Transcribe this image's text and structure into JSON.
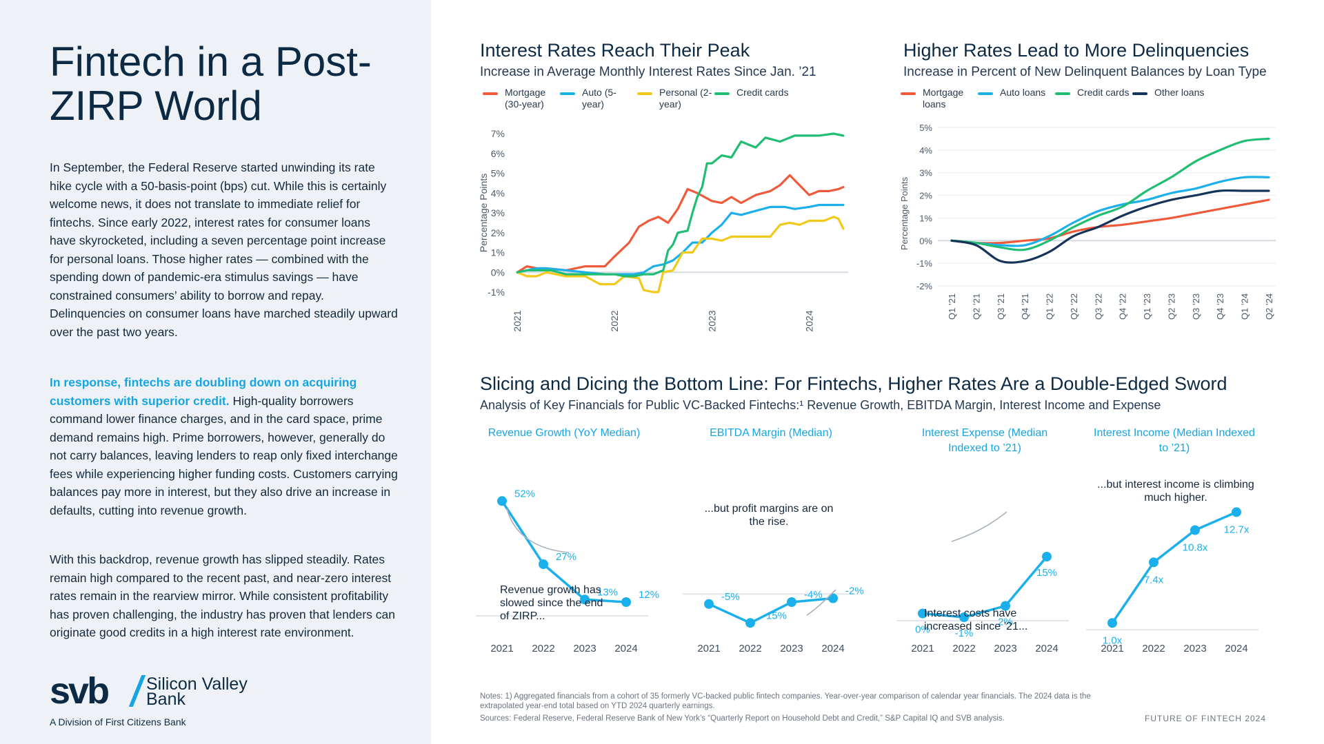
{
  "sidebar": {
    "title": "Fintech in a Post-ZIRP World",
    "paragraph1": "In September, the Federal Reserve started unwinding its rate hike cycle with a 50-basis-point (bps) cut. While this is certainly welcome news, it does not translate to immediate relief for fintechs. Since early 2022, interest rates for consumer loans have skyrocketed, including a seven percentage point increase for personal loans. Those higher rates — combined with the spending down of pandemic-era stimulus savings — have constrained consumers’ ability to borrow and repay. Delinquencies on consumer loans have marched steadily upward over the past two years.",
    "paragraph2_highlight": "In response, fintechs are doubling down on acquiring customers with superior credit.",
    "paragraph2_rest": " High-quality borrowers command lower finance charges, and in the card space, prime demand remains high. Prime borrowers, however, generally do not carry balances, leaving lenders to reap only fixed interchange fees while experiencing higher funding costs. Customers carrying balances pay more in interest, but they also drive an increase in defaults, cutting into revenue growth.",
    "paragraph3": "With this backdrop, revenue growth has slipped steadily. Rates remain high compared to the recent past, and near-zero interest rates remain in the rearview mirror. While consistent profitability has proven challenging, the industry has proven that lenders can originate good credits in a high interest rate environment.",
    "logo": {
      "mark": "svb",
      "name": "Silicon Valley Bank",
      "sub": "A Division of First Citizens Bank"
    }
  },
  "footer": {
    "notes": "Notes: 1) Aggregated financials from a cohort of 35 formerly VC-backed public fintech companies. Year-over-year comparison of calendar year financials. The 2024 data is the extrapolated year-end total based on YTD 2024 quarterly earnings.",
    "sources": "Sources: Federal Reserve, Federal Reserve Bank of New York’s “Quarterly Report on Household Debt and Credit,” S&P Capital IQ and SVB analysis.",
    "brand": "FUTURE OF FINTECH 2024"
  },
  "bottom_section": {
    "title": "Slicing and Dicing the Bottom Line: For Fintechs, Higher Rates Are a Double-Edged Sword",
    "subtitle": "Analysis of Key Financials for Public VC-Backed Fintechs:¹ Revenue Growth, EBITDA Margin, Interest Income and Expense"
  },
  "chart_data": [
    {
      "id": "interest",
      "type": "line",
      "title": "Interest Rates Reach Their Peak",
      "subtitle": "Increase in Average Monthly Interest Rates Since Jan. ’21",
      "ylabel": "Percentage Points",
      "ylim": [
        -1,
        7
      ],
      "yticks": [
        "-1%",
        "0%",
        "1%",
        "2%",
        "3%",
        "4%",
        "5%",
        "6%",
        "7%"
      ],
      "xlim": [
        2021,
        2024.4
      ],
      "xticks": [
        "2021",
        "2022",
        "2023",
        "2024"
      ],
      "grid": false,
      "legend_position": "top",
      "series": [
        {
          "name": "Mortgage (30-year)",
          "color": "#ef5a3a",
          "points": [
            [
              2021.0,
              0.0
            ],
            [
              2021.1,
              0.3
            ],
            [
              2021.2,
              0.2
            ],
            [
              2021.3,
              0.2
            ],
            [
              2021.5,
              0.1
            ],
            [
              2021.7,
              0.3
            ],
            [
              2021.9,
              0.3
            ],
            [
              2022.0,
              0.8
            ],
            [
              2022.15,
              1.5
            ],
            [
              2022.25,
              2.3
            ],
            [
              2022.35,
              2.6
            ],
            [
              2022.45,
              2.8
            ],
            [
              2022.55,
              2.5
            ],
            [
              2022.65,
              3.2
            ],
            [
              2022.75,
              4.2
            ],
            [
              2022.85,
              4.0
            ],
            [
              2023.0,
              3.6
            ],
            [
              2023.1,
              3.5
            ],
            [
              2023.2,
              3.8
            ],
            [
              2023.3,
              3.5
            ],
            [
              2023.45,
              3.9
            ],
            [
              2023.6,
              4.1
            ],
            [
              2023.7,
              4.4
            ],
            [
              2023.8,
              4.9
            ],
            [
              2023.9,
              4.4
            ],
            [
              2024.0,
              3.9
            ],
            [
              2024.1,
              4.1
            ],
            [
              2024.2,
              4.1
            ],
            [
              2024.3,
              4.2
            ],
            [
              2024.35,
              4.3
            ]
          ]
        },
        {
          "name": "Auto (5-year)",
          "color": "#1bb0ec",
          "points": [
            [
              2021.0,
              0.0
            ],
            [
              2021.1,
              0.1
            ],
            [
              2021.2,
              0.2
            ],
            [
              2021.3,
              0.2
            ],
            [
              2021.5,
              0.1
            ],
            [
              2021.7,
              0.0
            ],
            [
              2021.9,
              -0.1
            ],
            [
              2022.0,
              -0.1
            ],
            [
              2022.2,
              -0.1
            ],
            [
              2022.3,
              0.0
            ],
            [
              2022.4,
              0.3
            ],
            [
              2022.5,
              0.4
            ],
            [
              2022.6,
              0.6
            ],
            [
              2022.7,
              1.0
            ],
            [
              2022.8,
              1.5
            ],
            [
              2022.9,
              1.5
            ],
            [
              2023.0,
              2.0
            ],
            [
              2023.1,
              2.4
            ],
            [
              2023.2,
              3.0
            ],
            [
              2023.3,
              2.9
            ],
            [
              2023.45,
              3.1
            ],
            [
              2023.6,
              3.3
            ],
            [
              2023.75,
              3.3
            ],
            [
              2023.85,
              3.2
            ],
            [
              2024.0,
              3.3
            ],
            [
              2024.1,
              3.4
            ],
            [
              2024.2,
              3.4
            ],
            [
              2024.35,
              3.4
            ]
          ]
        },
        {
          "name": "Personal (2-year)",
          "color": "#f2c919",
          "points": [
            [
              2021.0,
              0.0
            ],
            [
              2021.1,
              -0.2
            ],
            [
              2021.2,
              -0.2
            ],
            [
              2021.3,
              0.0
            ],
            [
              2021.5,
              -0.2
            ],
            [
              2021.7,
              -0.2
            ],
            [
              2021.85,
              -0.6
            ],
            [
              2022.0,
              -0.6
            ],
            [
              2022.1,
              -0.2
            ],
            [
              2022.25,
              -0.3
            ],
            [
              2022.3,
              -0.9
            ],
            [
              2022.4,
              -1.0
            ],
            [
              2022.45,
              -1.0
            ],
            [
              2022.5,
              0.0
            ],
            [
              2022.6,
              0.1
            ],
            [
              2022.7,
              1.0
            ],
            [
              2022.8,
              1.0
            ],
            [
              2022.9,
              1.7
            ],
            [
              2023.0,
              1.7
            ],
            [
              2023.1,
              1.6
            ],
            [
              2023.2,
              1.8
            ],
            [
              2023.35,
              1.8
            ],
            [
              2023.5,
              1.8
            ],
            [
              2023.6,
              1.8
            ],
            [
              2023.7,
              2.4
            ],
            [
              2023.8,
              2.5
            ],
            [
              2023.9,
              2.4
            ],
            [
              2024.0,
              2.6
            ],
            [
              2024.15,
              2.6
            ],
            [
              2024.25,
              2.8
            ],
            [
              2024.3,
              2.7
            ],
            [
              2024.35,
              2.2
            ]
          ]
        },
        {
          "name": "Credit cards",
          "color": "#1fbe72",
          "points": [
            [
              2021.0,
              0.0
            ],
            [
              2021.1,
              0.1
            ],
            [
              2021.2,
              0.1
            ],
            [
              2021.35,
              0.1
            ],
            [
              2021.5,
              -0.1
            ],
            [
              2021.7,
              -0.1
            ],
            [
              2021.9,
              -0.1
            ],
            [
              2022.0,
              -0.1
            ],
            [
              2022.1,
              -0.2
            ],
            [
              2022.2,
              -0.2
            ],
            [
              2022.3,
              -0.1
            ],
            [
              2022.4,
              -0.1
            ],
            [
              2022.5,
              0.1
            ],
            [
              2022.55,
              1.1
            ],
            [
              2022.6,
              1.4
            ],
            [
              2022.65,
              2.0
            ],
            [
              2022.75,
              2.1
            ],
            [
              2022.8,
              3.0
            ],
            [
              2022.85,
              3.8
            ],
            [
              2022.9,
              4.3
            ],
            [
              2022.95,
              5.5
            ],
            [
              2023.0,
              5.5
            ],
            [
              2023.1,
              5.9
            ],
            [
              2023.2,
              5.8
            ],
            [
              2023.3,
              6.6
            ],
            [
              2023.45,
              6.3
            ],
            [
              2023.55,
              6.8
            ],
            [
              2023.7,
              6.6
            ],
            [
              2023.85,
              6.9
            ],
            [
              2024.0,
              6.9
            ],
            [
              2024.1,
              6.9
            ],
            [
              2024.25,
              7.0
            ],
            [
              2024.35,
              6.9
            ]
          ]
        }
      ]
    },
    {
      "id": "delinquency",
      "type": "line",
      "title": "Higher Rates Lead to More Delinquencies",
      "subtitle": "Increase in Percent of New Delinquent Balances by Loan Type",
      "ylabel": "Percentage Points",
      "ylim": [
        -2,
        5
      ],
      "yticks": [
        "-2%",
        "-1%",
        "0%",
        "1%",
        "2%",
        "3%",
        "4%",
        "5%"
      ],
      "categories": [
        "Q1 ’21",
        "Q2 ’21",
        "Q3 ’21",
        "Q4 ’21",
        "Q1 ’22",
        "Q2 ’22",
        "Q3 ’22",
        "Q4 ’22",
        "Q1 ’23",
        "Q2 ’23",
        "Q3 ’23",
        "Q4 ’23",
        "Q1 ’24",
        "Q2 ’24"
      ],
      "grid": true,
      "legend_position": "top",
      "series": [
        {
          "name": "Mortgage loans",
          "color": "#ef5a3a",
          "values": [
            0,
            -0.1,
            -0.1,
            0.0,
            0.1,
            0.4,
            0.6,
            0.7,
            0.85,
            1.0,
            1.2,
            1.4,
            1.6,
            1.8
          ]
        },
        {
          "name": "Auto loans",
          "color": "#1bb0ec",
          "values": [
            0,
            -0.1,
            -0.2,
            -0.2,
            0.2,
            0.8,
            1.3,
            1.6,
            1.8,
            2.1,
            2.3,
            2.6,
            2.8,
            2.8
          ]
        },
        {
          "name": "Credit cards",
          "color": "#1fbe72",
          "values": [
            0,
            -0.1,
            -0.3,
            -0.4,
            0.0,
            0.6,
            1.1,
            1.5,
            2.2,
            2.8,
            3.5,
            4.0,
            4.4,
            4.5
          ]
        },
        {
          "name": "Other loans",
          "color": "#14345a",
          "values": [
            0,
            -0.2,
            -0.9,
            -0.9,
            -0.5,
            0.2,
            0.6,
            1.1,
            1.5,
            1.8,
            2.0,
            2.2,
            2.2,
            2.2
          ]
        }
      ]
    },
    {
      "id": "revenue",
      "type": "line",
      "title": "Revenue Growth (YoY Median)",
      "categories": [
        "2021",
        "2022",
        "2023",
        "2024"
      ],
      "values": [
        52,
        27,
        13,
        12
      ],
      "labels": [
        "52%",
        "27%",
        "13%",
        "12%"
      ],
      "ylim": [
        0,
        60
      ],
      "annotation": "Revenue growth has slowed since the end of ZIRP..."
    },
    {
      "id": "ebitda",
      "type": "line",
      "title": "EBITDA Margin (Median)",
      "categories": [
        "2021",
        "2022",
        "2023",
        "2024"
      ],
      "values": [
        -5,
        -15,
        -4,
        -2
      ],
      "labels": [
        "-5%",
        "-15%",
        "-4%",
        "-2%"
      ],
      "ylim": [
        -20,
        60
      ],
      "annotation": "...but profit margins are on the rise."
    },
    {
      "id": "expense",
      "type": "line",
      "title": "Interest Expense (Median Indexed to ’21)",
      "categories": [
        "2021",
        "2022",
        "2023",
        "2024"
      ],
      "values": [
        0,
        -1,
        2,
        15
      ],
      "labels": [
        "0%",
        "-1%",
        "2%",
        "15%"
      ],
      "ylim": [
        -5,
        35
      ],
      "annotation": "Interest costs have increased since ’21..."
    },
    {
      "id": "income",
      "type": "line",
      "title": "Interest Income (Median Indexed to ’21)",
      "categories": [
        "2021",
        "2022",
        "2023",
        "2024"
      ],
      "values": [
        1.0,
        7.4,
        10.8,
        12.7
      ],
      "labels": [
        "1.0x",
        "7.4x",
        "10.8x",
        "12.7x"
      ],
      "ylim": [
        0,
        16
      ],
      "annotation": "...but interest income is climbing much higher."
    }
  ]
}
